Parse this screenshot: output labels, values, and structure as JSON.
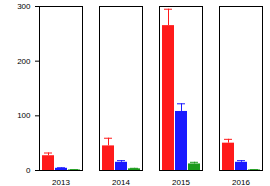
{
  "chart_data": {
    "type": "bar",
    "categories": [
      "2013",
      "2014",
      "2015",
      "2016"
    ],
    "series": [
      {
        "color": "#ff1a1a",
        "values": [
          27,
          45,
          265,
          50
        ],
        "errors": [
          5,
          14,
          30,
          7
        ]
      },
      {
        "color": "#1a1aff",
        "values": [
          4,
          15,
          108,
          15
        ],
        "errors": [
          1,
          3,
          14,
          3
        ]
      },
      {
        "color": "#1a9a1a",
        "values": [
          1,
          3,
          12,
          1
        ],
        "errors": [
          0.5,
          1,
          3,
          0.5
        ]
      }
    ],
    "ylim": [
      0,
      300
    ],
    "yticks": [
      0,
      100,
      200,
      300
    ],
    "grid": false
  }
}
